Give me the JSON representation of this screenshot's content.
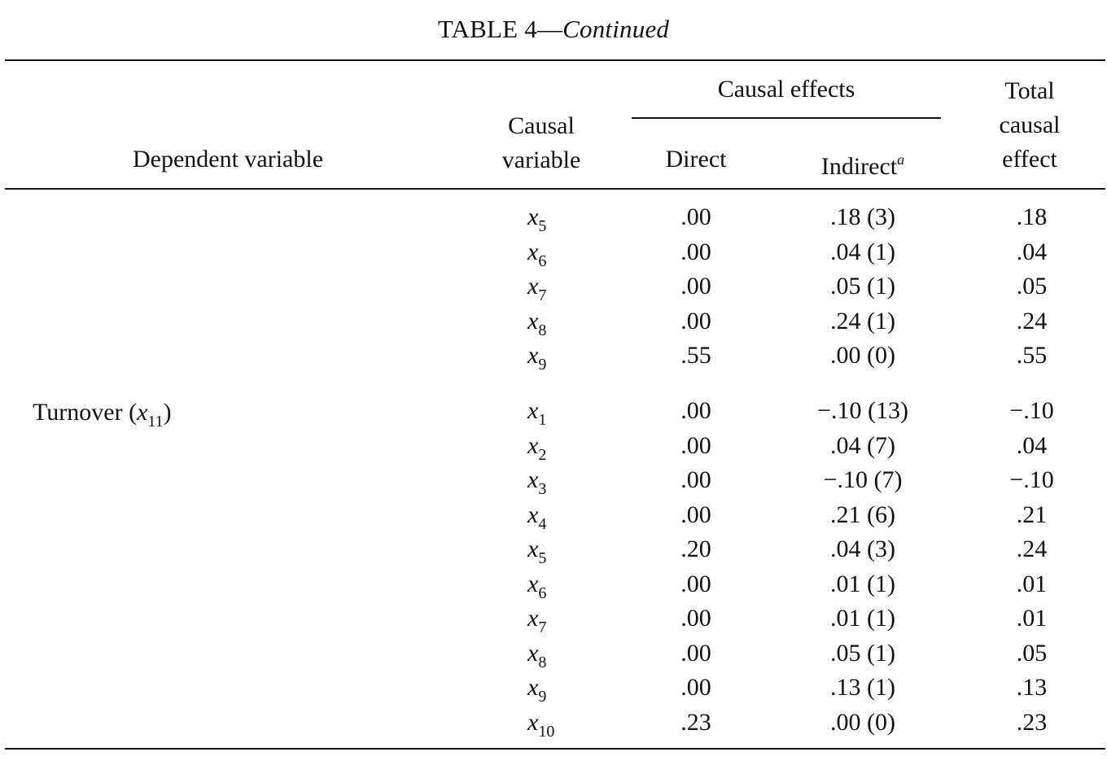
{
  "table": {
    "title_main": "TABLE 4—",
    "title_italic": "Continued",
    "headers": {
      "dependent_variable": "Dependent variable",
      "causal_variable_line1": "Causal",
      "causal_variable_line2": "variable",
      "causal_effects": "Causal effects",
      "direct": "Direct",
      "indirect": "Indirect",
      "indirect_footnote": "a",
      "total_line1": "Total",
      "total_line2": "causal",
      "total_line3": "effect"
    },
    "groups": [
      {
        "dependent_variable": "",
        "rows": [
          {
            "var": "x",
            "sub": "5",
            "direct": ".00",
            "indirect": ".18 (3)",
            "total": ".18"
          },
          {
            "var": "x",
            "sub": "6",
            "direct": ".00",
            "indirect": ".04 (1)",
            "total": ".04"
          },
          {
            "var": "x",
            "sub": "7",
            "direct": ".00",
            "indirect": ".05 (1)",
            "total": ".05"
          },
          {
            "var": "x",
            "sub": "8",
            "direct": ".00",
            "indirect": ".24 (1)",
            "total": ".24"
          },
          {
            "var": "x",
            "sub": "9",
            "direct": ".55",
            "indirect": ".00 (0)",
            "total": ".55"
          }
        ]
      },
      {
        "dependent_variable": "Turnover",
        "dependent_var_symbol": "x",
        "dependent_var_sub": "11",
        "rows": [
          {
            "var": "x",
            "sub": "1",
            "direct": ".00",
            "indirect": "−.10 (13)",
            "total": "−.10"
          },
          {
            "var": "x",
            "sub": "2",
            "direct": ".00",
            "indirect": ".04 (7)",
            "total": ".04"
          },
          {
            "var": "x",
            "sub": "3",
            "direct": ".00",
            "indirect": "−.10 (7)",
            "total": "−.10"
          },
          {
            "var": "x",
            "sub": "4",
            "direct": ".00",
            "indirect": ".21 (6)",
            "total": ".21"
          },
          {
            "var": "x",
            "sub": "5",
            "direct": ".20",
            "indirect": ".04 (3)",
            "total": ".24"
          },
          {
            "var": "x",
            "sub": "6",
            "direct": ".00",
            "indirect": ".01 (1)",
            "total": ".01"
          },
          {
            "var": "x",
            "sub": "7",
            "direct": ".00",
            "indirect": ".01 (1)",
            "total": ".01"
          },
          {
            "var": "x",
            "sub": "8",
            "direct": ".00",
            "indirect": ".05 (1)",
            "total": ".05"
          },
          {
            "var": "x",
            "sub": "9",
            "direct": ".00",
            "indirect": ".13 (1)",
            "total": ".13"
          },
          {
            "var": "x",
            "sub": "10",
            "direct": ".23",
            "indirect": ".00 (0)",
            "total": ".23"
          }
        ]
      }
    ]
  }
}
